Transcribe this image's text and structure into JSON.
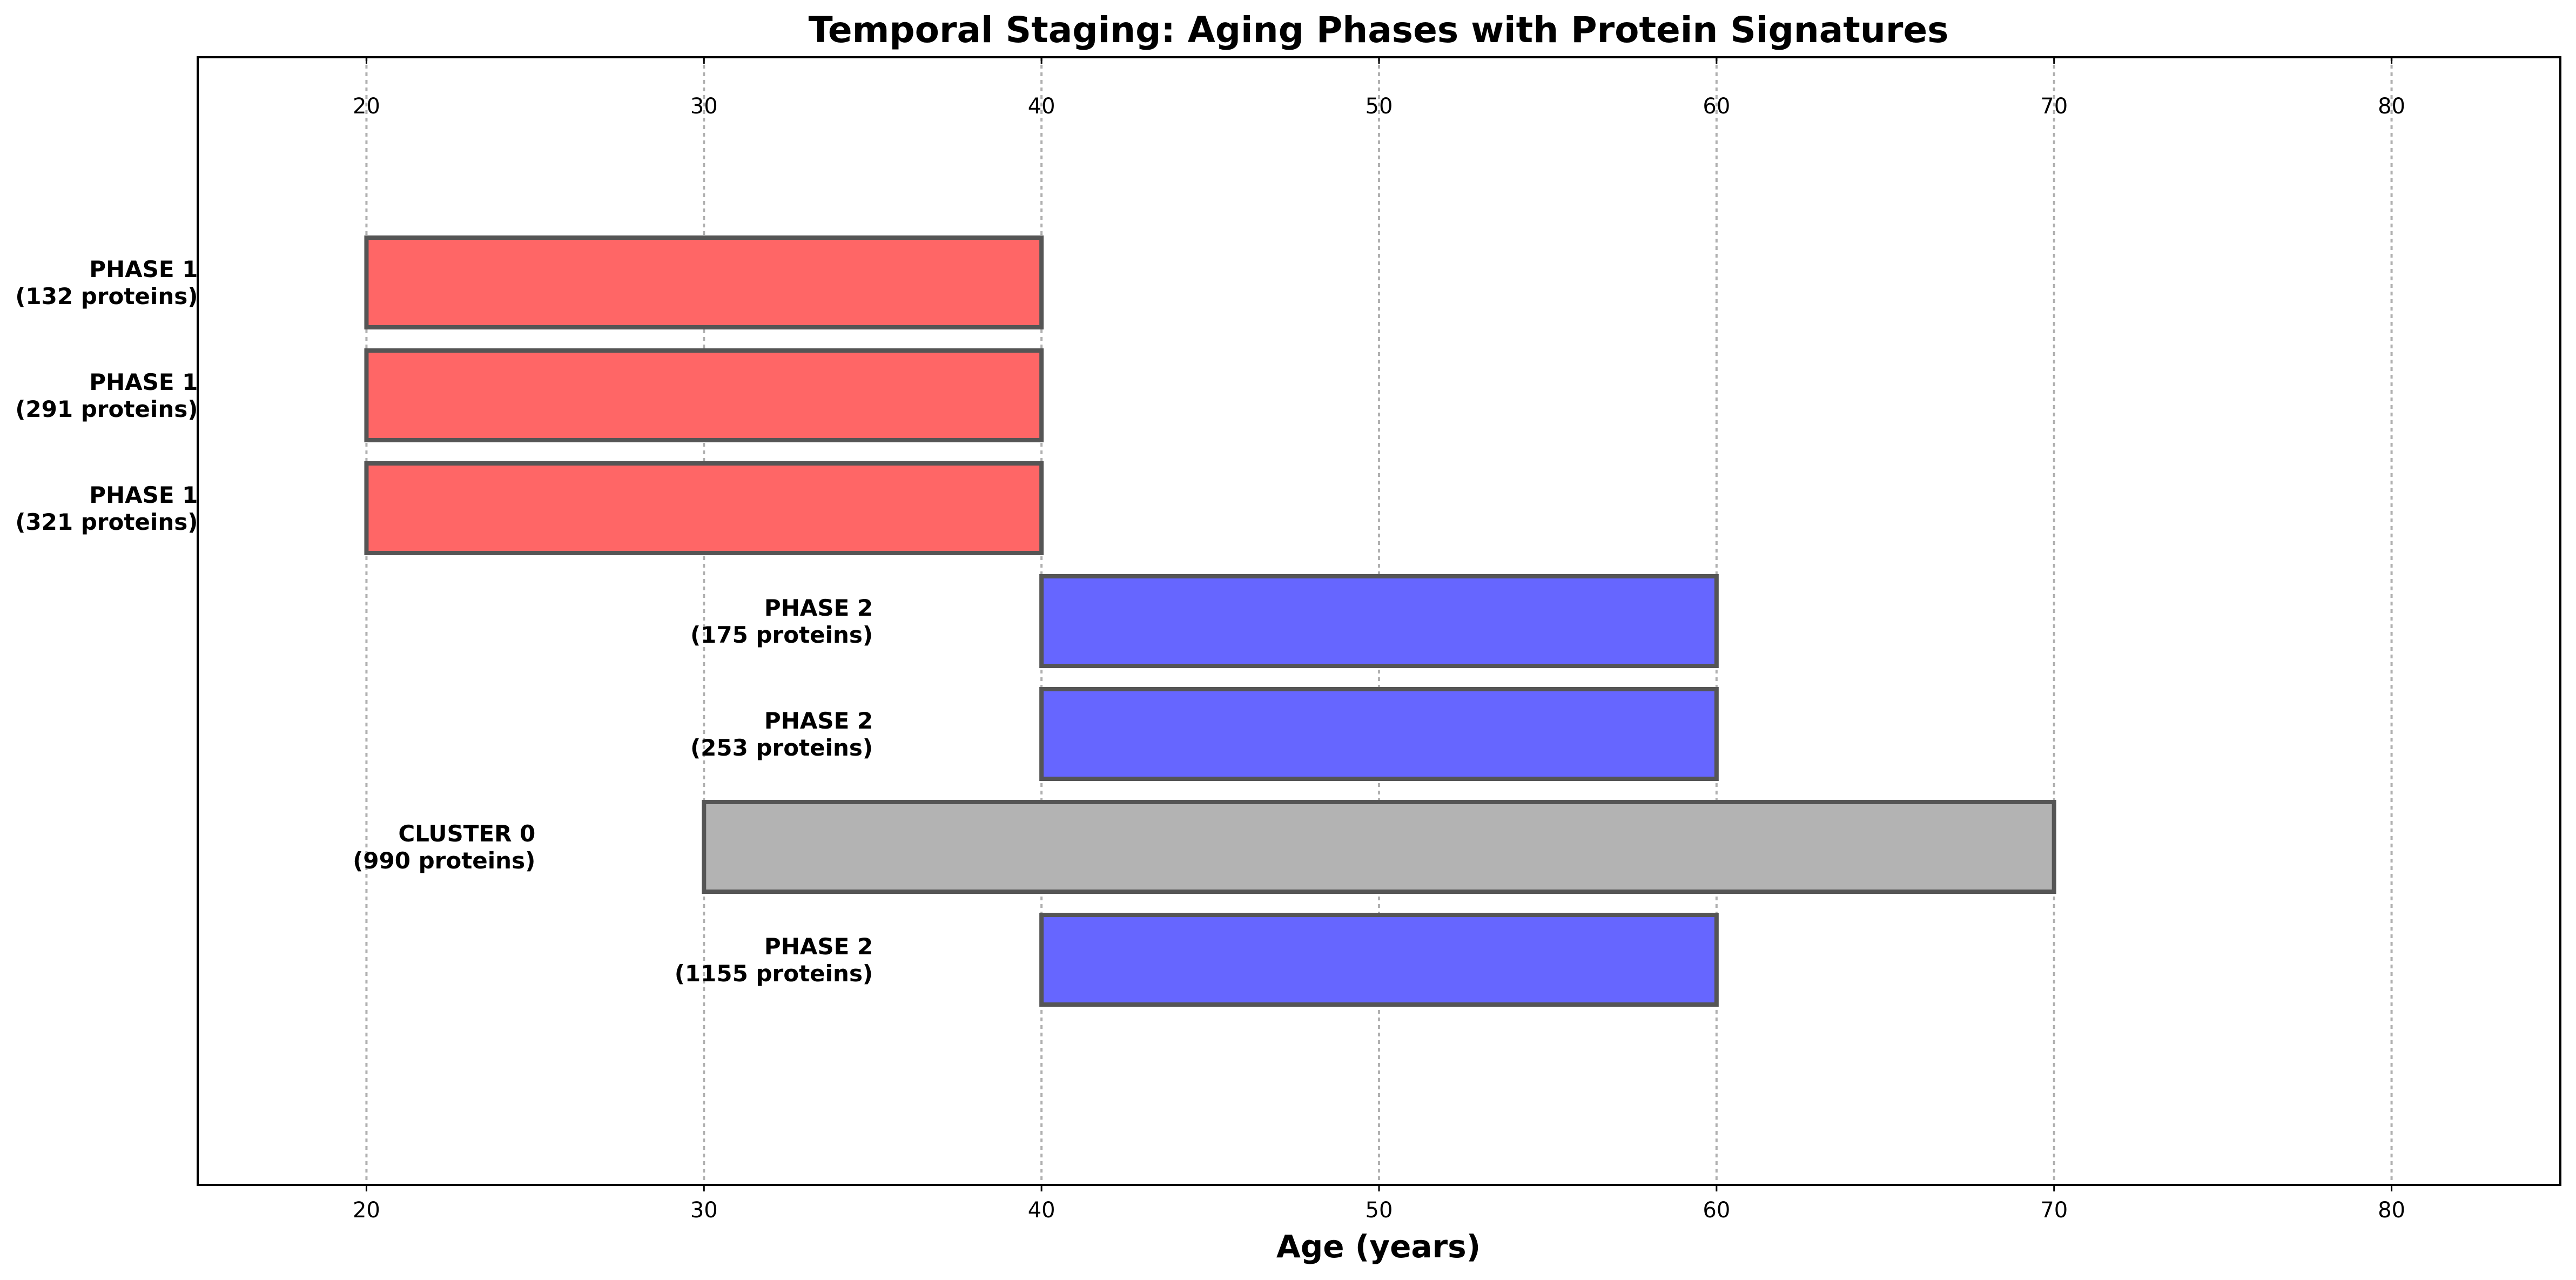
{
  "chart_data": {
    "type": "bar",
    "orientation": "horizontal",
    "title": "Temporal Staging: Aging Phases with Protein Signatures",
    "xlabel": "Age (years)",
    "ylabel": "",
    "xlim": [
      15,
      85
    ],
    "xticks": [
      20,
      30,
      40,
      50,
      60,
      70,
      80
    ],
    "xtick_labels": [
      "20",
      "30",
      "40",
      "50",
      "60",
      "70",
      "80"
    ],
    "grid": "x, dotted",
    "ticks_top_and_bottom": true,
    "colors": {
      "phase1": "#ff6666",
      "phase2": "#6666ff",
      "cluster": "#b3b3b3",
      "edge": "#555555",
      "grid": "#b0b0b0"
    },
    "bars": [
      {
        "label_line1": "PHASE 1",
        "label_line2": "(132 proteins)",
        "start": 20,
        "end": 40,
        "group": "phase1"
      },
      {
        "label_line1": "PHASE 1",
        "label_line2": "(291 proteins)",
        "start": 20,
        "end": 40,
        "group": "phase1"
      },
      {
        "label_line1": "PHASE 1",
        "label_line2": "(321 proteins)",
        "start": 20,
        "end": 40,
        "group": "phase1"
      },
      {
        "label_line1": "PHASE 2",
        "label_line2": "(175 proteins)",
        "start": 40,
        "end": 60,
        "group": "phase2"
      },
      {
        "label_line1": "PHASE 2",
        "label_line2": "(253 proteins)",
        "start": 40,
        "end": 60,
        "group": "phase2"
      },
      {
        "label_line1": "CLUSTER 0",
        "label_line2": "(990 proteins)",
        "start": 30,
        "end": 70,
        "group": "cluster"
      },
      {
        "label_line1": "PHASE 2",
        "label_line2": "(1155 proteins)",
        "start": 40,
        "end": 60,
        "group": "phase2"
      }
    ]
  }
}
